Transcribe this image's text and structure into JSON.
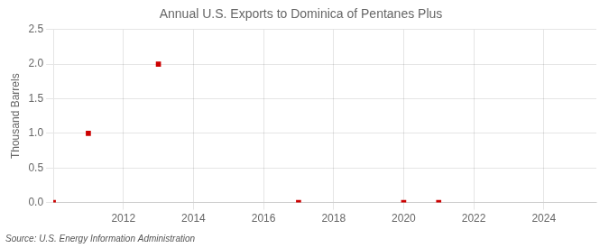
{
  "chart_data": {
    "type": "scatter",
    "title": "Annual U.S. Exports to Dominica of Pentanes Plus",
    "ylabel": "Thousand Barrels",
    "annotations": [
      "Source: U.S. Energy Information Administration"
    ],
    "x": [
      2010,
      2011,
      2013,
      2017,
      2020,
      2021
    ],
    "values": [
      0.0,
      1.0,
      2.0,
      0.0,
      0.0,
      0.0
    ],
    "color": "#cc0000",
    "marker": "square",
    "xlim": [
      2010.0,
      2025.5
    ],
    "ylim": [
      0.0,
      2.5
    ],
    "xticks": [
      2012,
      2014,
      2016,
      2018,
      2020,
      2022,
      2024
    ],
    "yticks": [
      {
        "value": 0.0,
        "label": "0.0"
      },
      0.5,
      {
        "value": 1.0,
        "label": "1.0"
      },
      1.5,
      {
        "value": 2.0,
        "label": "2.0"
      },
      2.5
    ],
    "grid": true
  }
}
